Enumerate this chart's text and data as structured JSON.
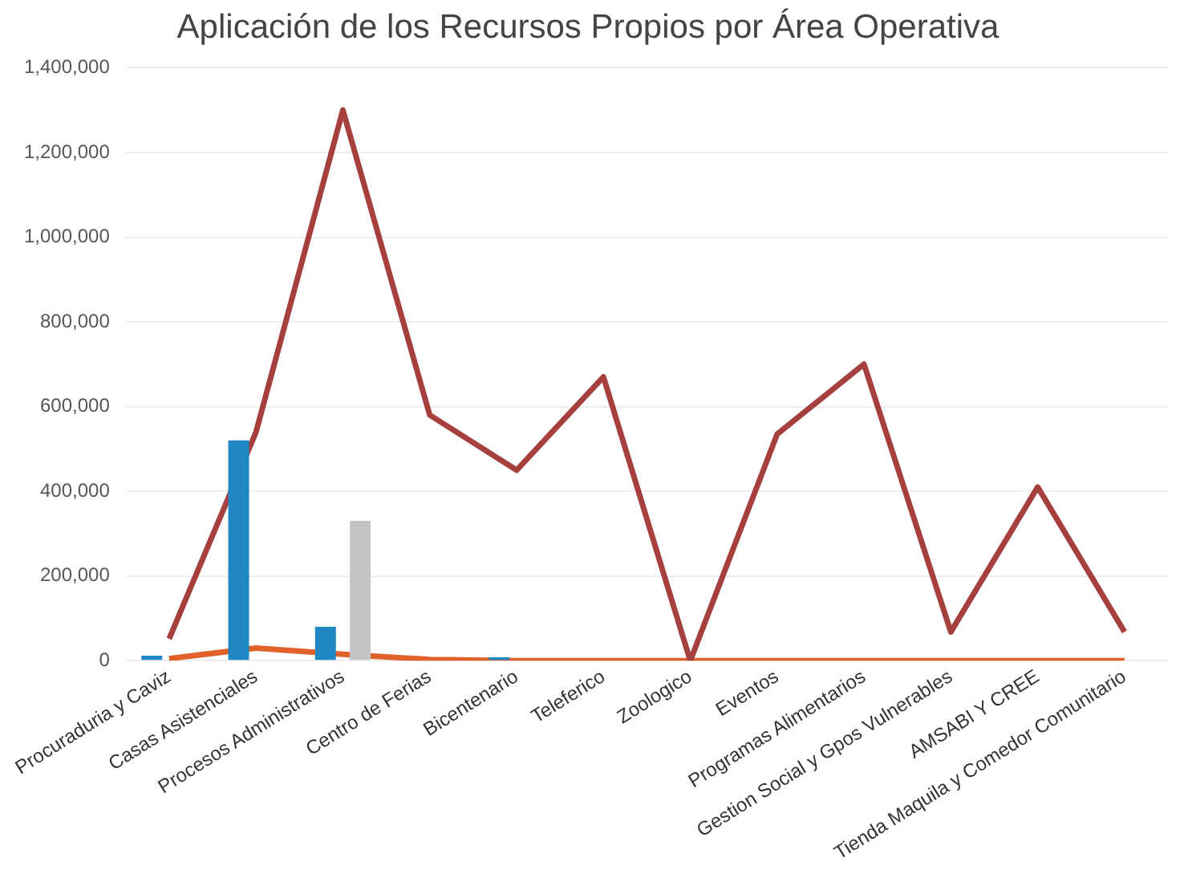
{
  "chart_data": {
    "type": "bar",
    "title": "Aplicación de los Recursos Propios por Área Operativa",
    "categories": [
      "Procuraduria y Caviz",
      "Casas Asistenciales",
      "Procesos Administrativos",
      "Centro de Ferias",
      "Bicentenario",
      "Teleferico",
      "Zoologico",
      "Eventos",
      "Programas Alimentarios",
      "Gestion Social y Gpos Vulnerables",
      "AMSABI Y CREE",
      "Tienda Maquila y Comedor Comunitario"
    ],
    "series": [
      {
        "color": "#1f87c4",
        "values": [
          12000,
          520000,
          80000,
          null,
          8000,
          null,
          null,
          null,
          null,
          null,
          null,
          null
        ]
      },
      {
        "color": "#c4c4c4",
        "values": [
          null,
          null,
          330000,
          null,
          null,
          null,
          null,
          null,
          null,
          null,
          null,
          null
        ]
      },
      {
        "type": "line",
        "color": "#a5403f",
        "values": [
          52000,
          540000,
          1300000,
          580000,
          450000,
          670000,
          0,
          535000,
          700000,
          68000,
          410000,
          68000
        ]
      },
      {
        "type": "line",
        "color": "#e0622a",
        "values": [
          5000,
          30000,
          15000,
          3000,
          0,
          0,
          0,
          0,
          0,
          0,
          0,
          0
        ]
      }
    ],
    "ylim": [
      0,
      1400000
    ],
    "yticks": [
      0,
      {
        "value": 200000,
        "label": "200,000"
      },
      {
        "value": 400000,
        "label": "400,000"
      },
      {
        "value": 600000,
        "label": "600,000"
      },
      {
        "value": 800000,
        "label": "800,000"
      },
      {
        "value": 1000000,
        "label": "1,000,000"
      },
      {
        "value": 1200000,
        "label": "1,200,000"
      },
      {
        "value": 1400000,
        "label": "1,400,000"
      }
    ],
    "grid": "y",
    "legend": false,
    "marker": "none"
  }
}
